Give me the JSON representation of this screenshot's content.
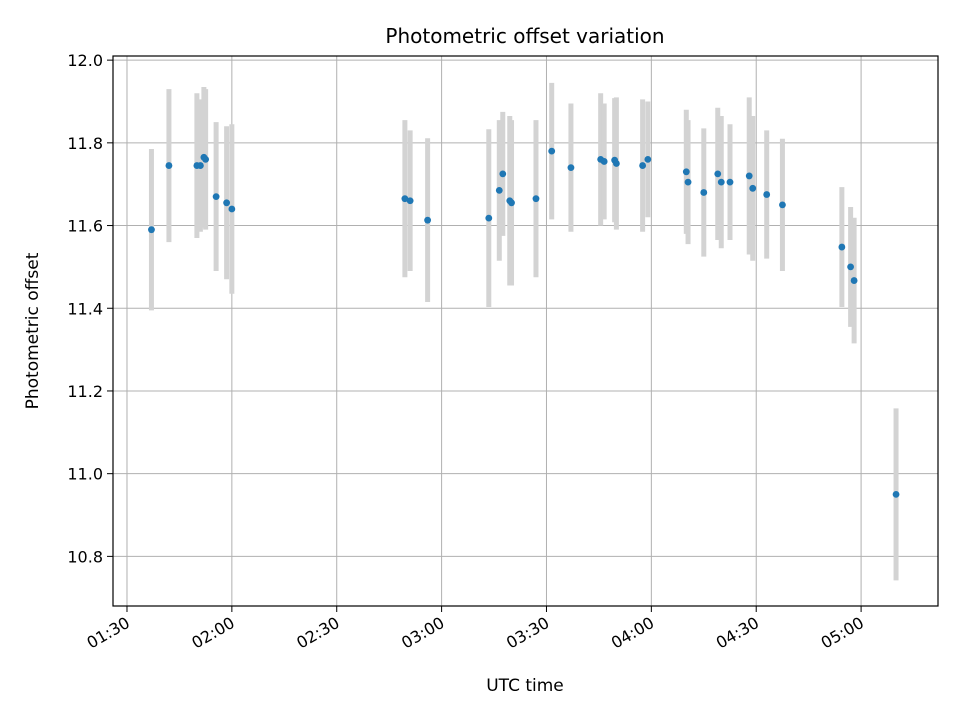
{
  "chart_data": {
    "type": "scatter",
    "title": "Photometric offset variation",
    "xlabel": "UTC time",
    "ylabel": "Photometric offset",
    "x_tick_labels": [
      "01:30",
      "02:00",
      "02:30",
      "03:00",
      "03:30",
      "04:00",
      "04:30",
      "05:00"
    ],
    "y_tick_labels": [
      "10.8",
      "11.0",
      "11.2",
      "11.4",
      "11.6",
      "11.8",
      "12.0"
    ],
    "x_ticks": [
      "01:30",
      "02:00",
      "02:30",
      "03:00",
      "03:30",
      "04:00",
      "04:30",
      "05:00"
    ],
    "y_ticks": [
      10.8,
      11.0,
      11.2,
      11.4,
      11.6,
      11.8,
      12.0
    ],
    "xlim": [
      "01:26",
      "05:22"
    ],
    "ylim": [
      10.68,
      12.01
    ],
    "grid": true,
    "point_color": "#1f77b4",
    "errorbar_color": "#d3d3d3",
    "points": [
      {
        "t": "01:37:00",
        "y": 11.59,
        "err": 0.195
      },
      {
        "t": "01:42:00",
        "y": 11.745,
        "err": 0.185
      },
      {
        "t": "01:50:00",
        "y": 11.745,
        "err": 0.175
      },
      {
        "t": "01:51:00",
        "y": 11.745,
        "err": 0.16
      },
      {
        "t": "01:52:00",
        "y": 11.765,
        "err": 0.17
      },
      {
        "t": "01:52:30",
        "y": 11.76,
        "err": 0.17
      },
      {
        "t": "01:55:30",
        "y": 11.67,
        "err": 0.18
      },
      {
        "t": "01:58:30",
        "y": 11.655,
        "err": 0.185
      },
      {
        "t": "02:00:00",
        "y": 11.64,
        "err": 0.205
      },
      {
        "t": "02:49:30",
        "y": 11.665,
        "err": 0.19
      },
      {
        "t": "02:51:00",
        "y": 11.66,
        "err": 0.17
      },
      {
        "t": "02:56:00",
        "y": 11.613,
        "err": 0.198
      },
      {
        "t": "03:13:30",
        "y": 11.618,
        "err": 0.215
      },
      {
        "t": "03:16:30",
        "y": 11.685,
        "err": 0.17
      },
      {
        "t": "03:17:30",
        "y": 11.725,
        "err": 0.15
      },
      {
        "t": "03:19:30",
        "y": 11.66,
        "err": 0.205
      },
      {
        "t": "03:20:00",
        "y": 11.655,
        "err": 0.2
      },
      {
        "t": "03:27:00",
        "y": 11.665,
        "err": 0.19
      },
      {
        "t": "03:31:30",
        "y": 11.78,
        "err": 0.165
      },
      {
        "t": "03:37:00",
        "y": 11.74,
        "err": 0.155
      },
      {
        "t": "03:45:30",
        "y": 11.76,
        "err": 0.16
      },
      {
        "t": "03:46:30",
        "y": 11.755,
        "err": 0.14
      },
      {
        "t": "03:49:30",
        "y": 11.758,
        "err": 0.15
      },
      {
        "t": "03:50:00",
        "y": 11.75,
        "err": 0.16
      },
      {
        "t": "03:57:30",
        "y": 11.745,
        "err": 0.16
      },
      {
        "t": "03:59:00",
        "y": 11.76,
        "err": 0.14
      },
      {
        "t": "04:10:00",
        "y": 11.73,
        "err": 0.15
      },
      {
        "t": "04:10:30",
        "y": 11.705,
        "err": 0.15
      },
      {
        "t": "04:15:00",
        "y": 11.68,
        "err": 0.155
      },
      {
        "t": "04:19:00",
        "y": 11.725,
        "err": 0.16
      },
      {
        "t": "04:20:00",
        "y": 11.705,
        "err": 0.16
      },
      {
        "t": "04:22:30",
        "y": 11.705,
        "err": 0.14
      },
      {
        "t": "04:28:00",
        "y": 11.72,
        "err": 0.19
      },
      {
        "t": "04:29:00",
        "y": 11.69,
        "err": 0.175
      },
      {
        "t": "04:33:00",
        "y": 11.675,
        "err": 0.155
      },
      {
        "t": "04:37:30",
        "y": 11.65,
        "err": 0.16
      },
      {
        "t": "04:54:30",
        "y": 11.548,
        "err": 0.145
      },
      {
        "t": "04:57:00",
        "y": 11.5,
        "err": 0.145
      },
      {
        "t": "04:58:00",
        "y": 11.467,
        "err": 0.152
      },
      {
        "t": "05:10:00",
        "y": 10.95,
        "err": 0.208
      }
    ]
  }
}
